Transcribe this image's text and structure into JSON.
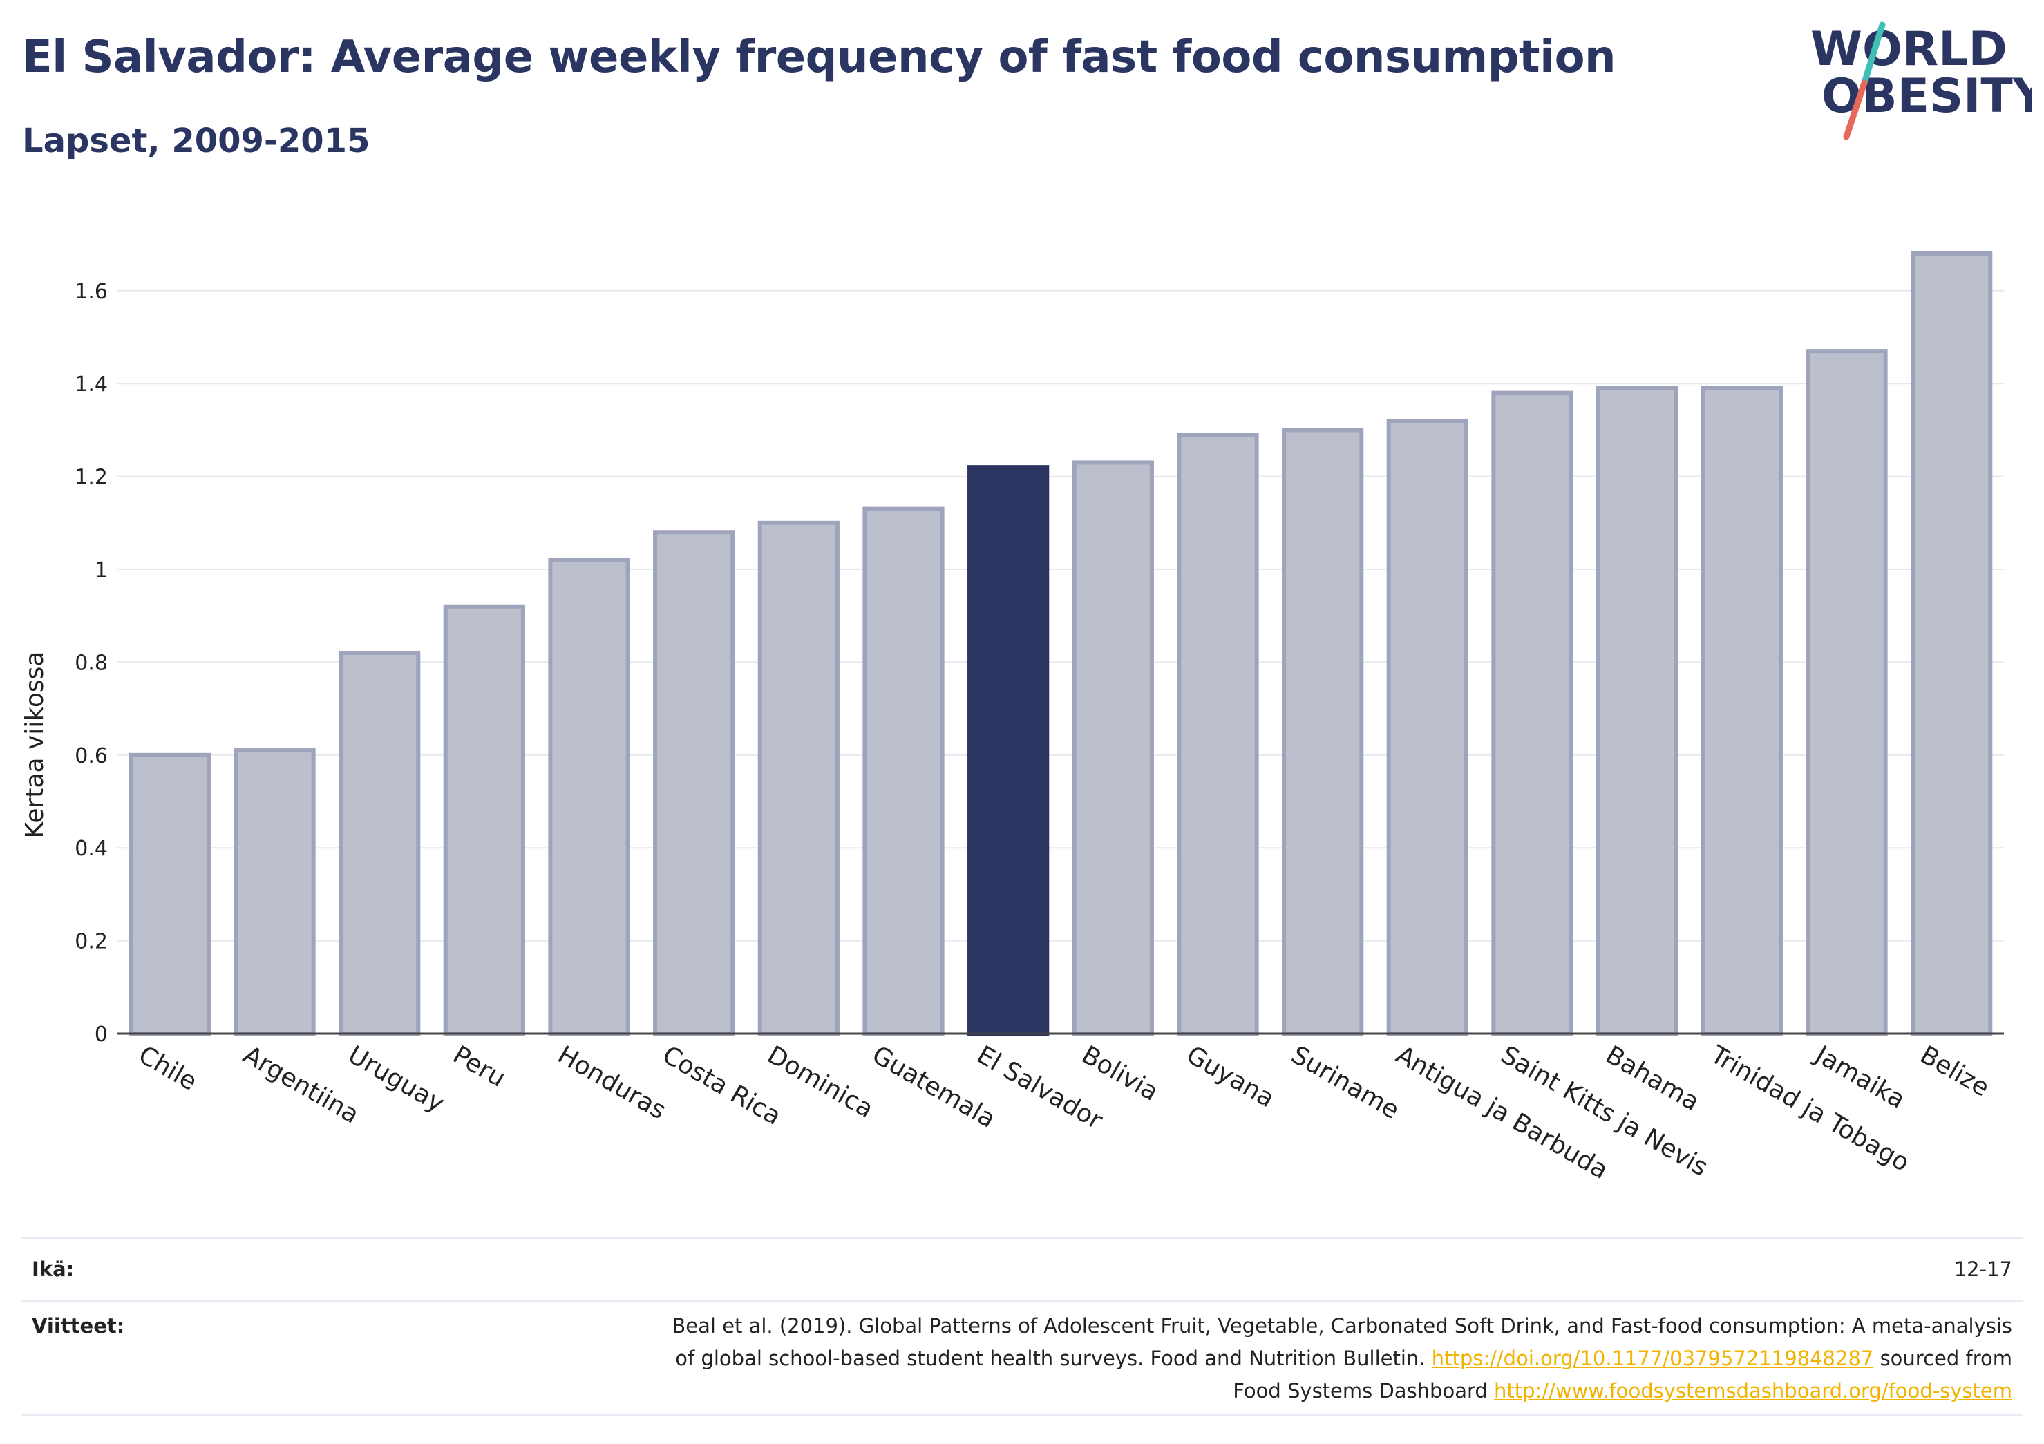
{
  "header": {
    "title": "El Salvador: Average weekly frequency of fast food consumption",
    "subtitle": "Lapset, 2009-2015"
  },
  "logo": {
    "line1": "WORLD",
    "line2": "OBESITY"
  },
  "colors": {
    "highlight": "#2a3561",
    "bar_fill": "#bcc0cd",
    "bar_stroke": "#9ea4bb",
    "grid": "#e6e8ef",
    "logo_teal": "#3fbfb5",
    "logo_coral": "#e8685a",
    "link": "#f2b200"
  },
  "chart_data": {
    "type": "bar",
    "ylabel": "Kertaa viikossa",
    "ylim": [
      0,
      1.75
    ],
    "yticks": [
      0,
      0.2,
      0.4,
      0.6,
      0.8,
      1,
      1.2,
      1.4,
      1.6
    ],
    "ytick_labels": [
      "0",
      "0.2",
      "0.4",
      "0.6",
      "0.8",
      "1",
      "1.2",
      "1.4",
      "1.6"
    ],
    "categories": [
      "Chile",
      "Argentiina",
      "Uruguay",
      "Peru",
      "Honduras",
      "Costa Rica",
      "Dominica",
      "Guatemala",
      "El Salvador",
      "Bolivia",
      "Guyana",
      "Suriname",
      "Antigua ja Barbuda",
      "Saint Kitts ja Nevis",
      "Bahama",
      "Trinidad ja Tobago",
      "Jamaika",
      "Belize"
    ],
    "values": [
      0.6,
      0.61,
      0.82,
      0.92,
      1.02,
      1.08,
      1.1,
      1.13,
      1.22,
      1.23,
      1.29,
      1.3,
      1.32,
      1.38,
      1.39,
      1.39,
      1.47,
      1.68
    ],
    "highlight": "El Salvador",
    "grid": true
  },
  "meta": {
    "age_label": "Ikä:",
    "age_value": "12-17",
    "ref_label": "Viitteet:",
    "ref_line1": "Beal et al. (2019). Global Patterns of Adolescent Fruit, Vegetable, Carbonated Soft Drink, and Fast-food consumption: A meta-analysis",
    "ref_line2_text": "of global school-based student health surveys. Food and Nutrition Bulletin. ",
    "ref_link1": "https://doi.org/10.1177/0379572119848287",
    "ref_line2_after": " sourced from",
    "ref_line3_text": "Food Systems Dashboard ",
    "ref_link2": "http://www.foodsystemsdashboard.org/food-system"
  }
}
